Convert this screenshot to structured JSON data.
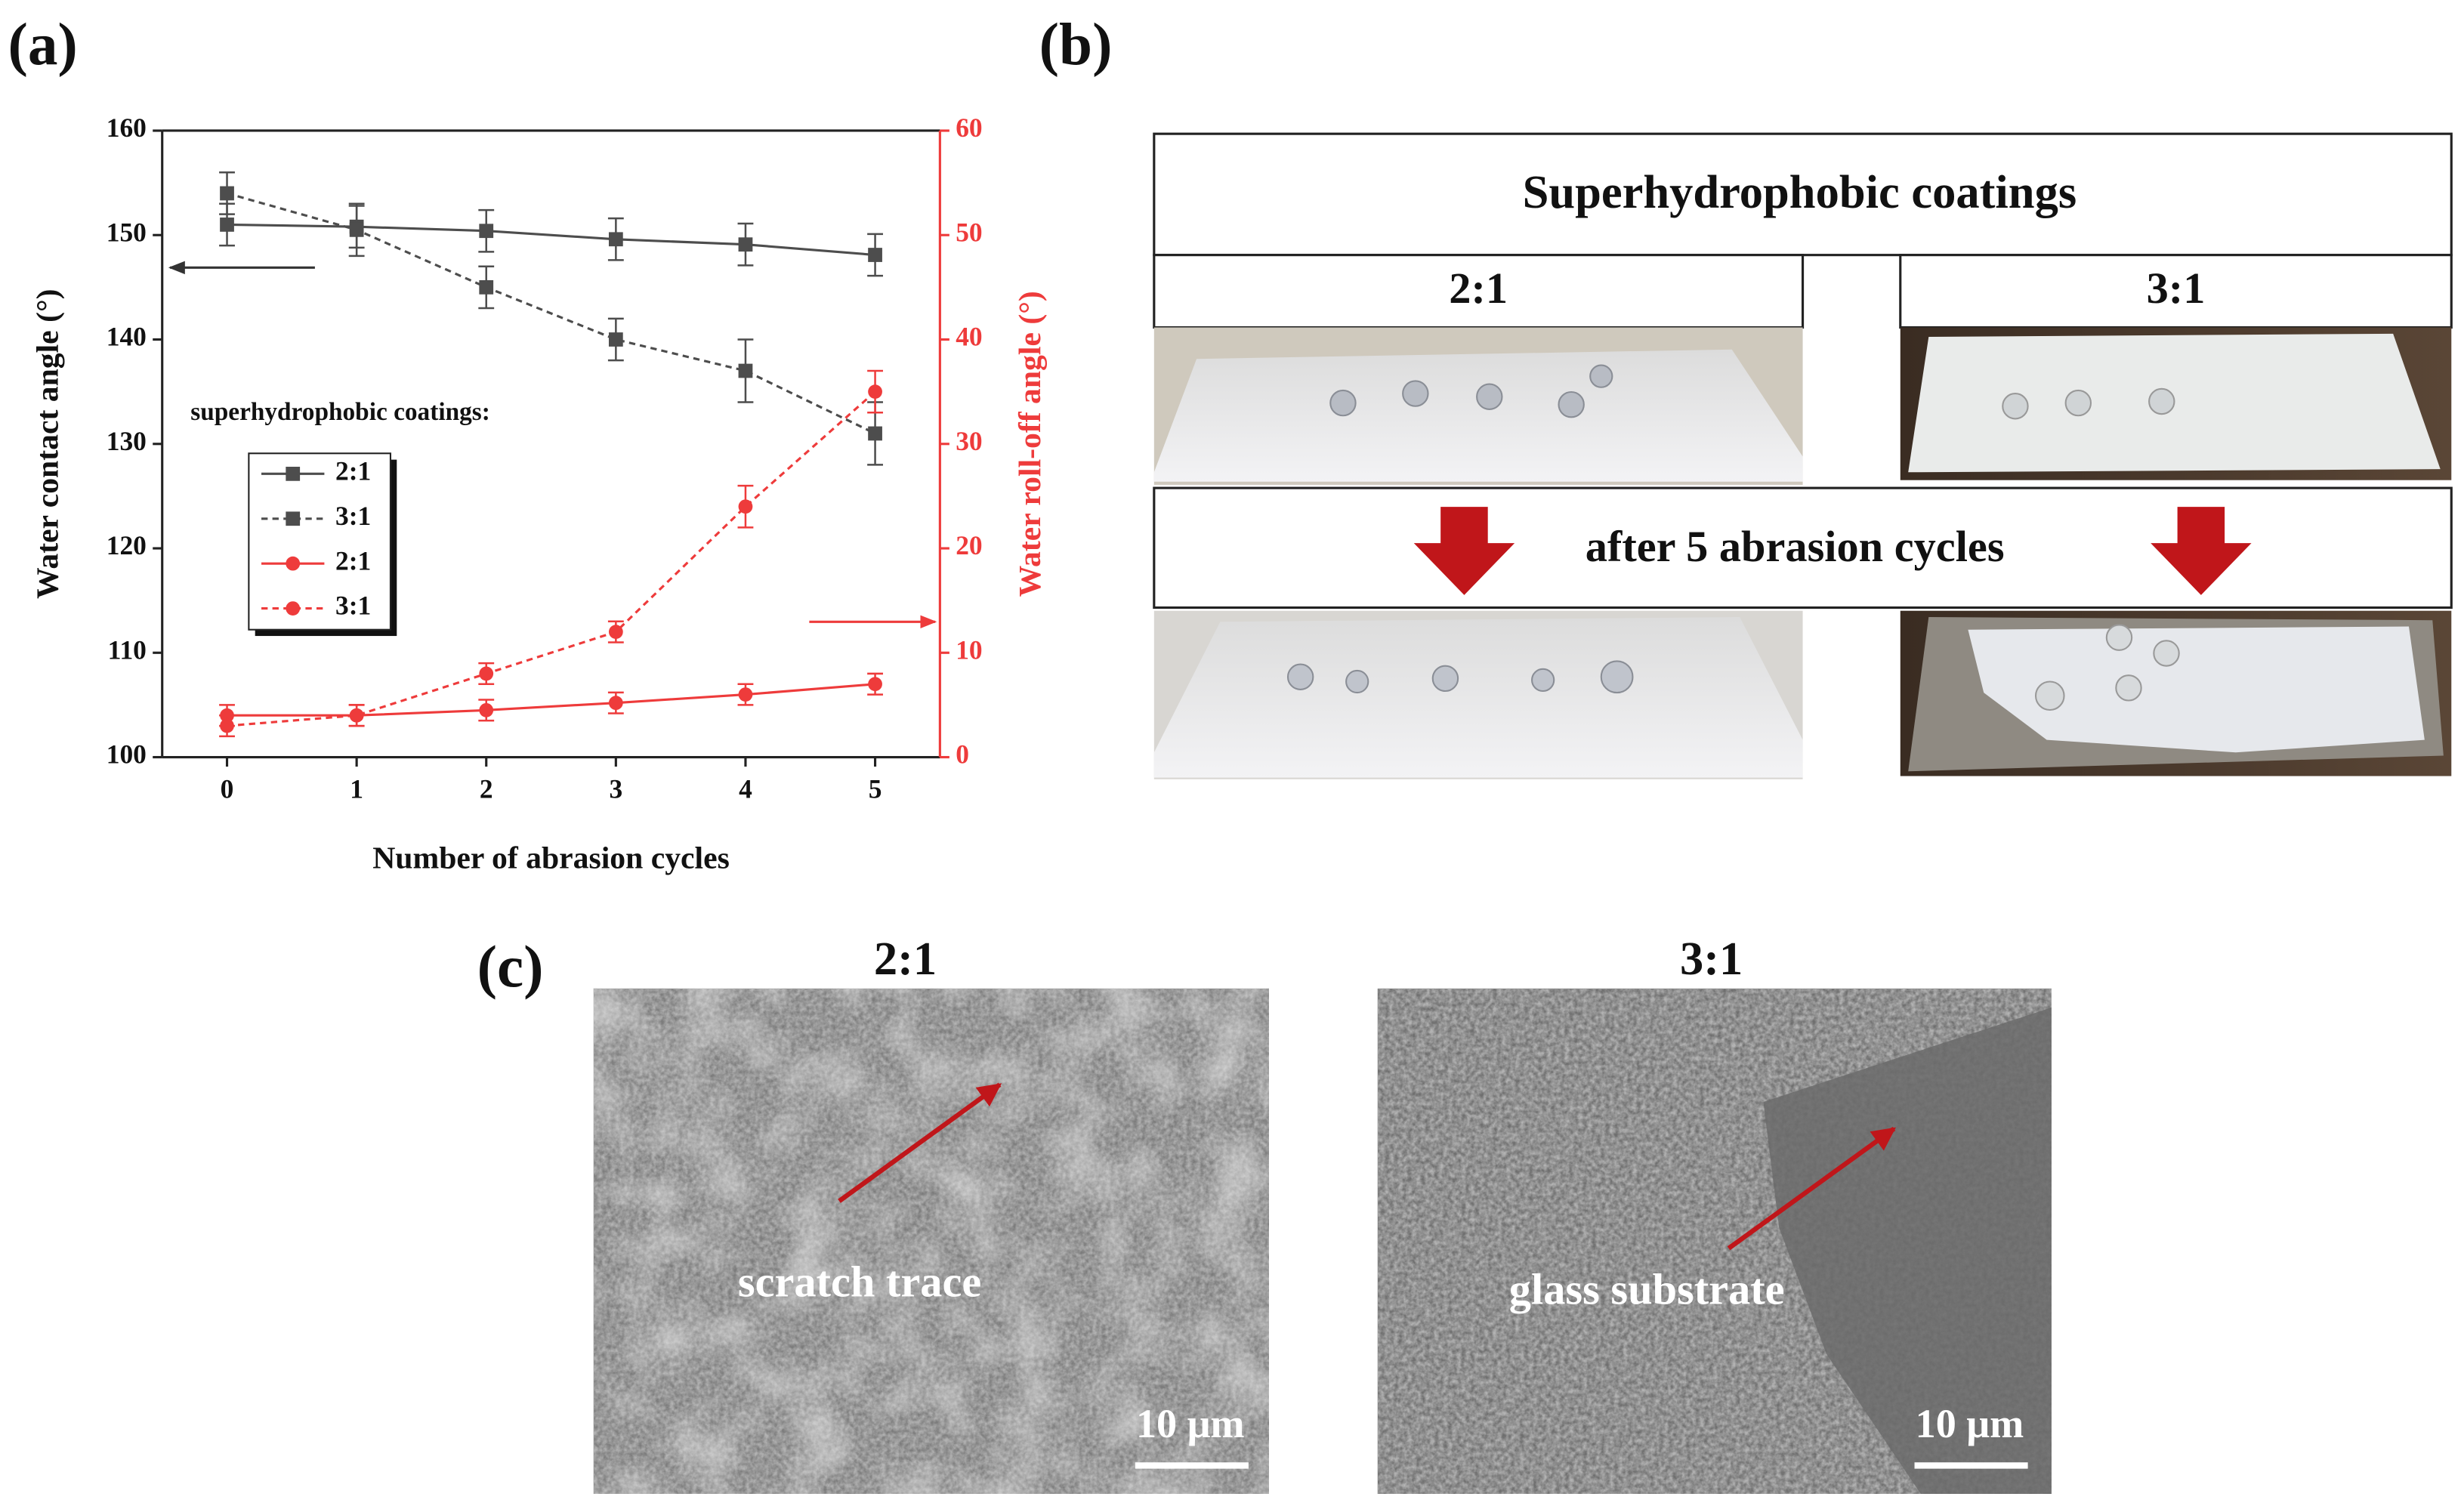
{
  "panel_labels": [
    "(a)",
    "(b)",
    "(c)"
  ],
  "chart_data": {
    "type": "line",
    "x_label": "Number of abrasion cycles",
    "y_label": "Water contact angle (°)",
    "y2_label": "Water roll-off angle (°)",
    "x": [
      0,
      1,
      2,
      3,
      4,
      5
    ],
    "xlim": [
      -0.5,
      5.5
    ],
    "xticks": [
      0,
      1,
      2,
      3,
      4,
      5
    ],
    "ylim": [
      100,
      160
    ],
    "yticks": [
      100,
      110,
      120,
      130,
      140,
      150,
      160
    ],
    "y2lim": [
      0,
      60
    ],
    "y2ticks": [
      0,
      10,
      20,
      30,
      40,
      50,
      60
    ],
    "legend_title": "superhydrophobic coatings:",
    "legend_loc": "center left",
    "series": [
      {
        "name": "2:1",
        "color": "#4d4d4d",
        "linestyle": "solid",
        "marker": "square",
        "values": [
          151,
          150.8,
          150.4,
          149.6,
          149.1,
          148.1
        ],
        "errors": [
          2,
          2,
          2,
          2,
          2,
          2
        ]
      },
      {
        "name": "3:1",
        "color": "#4d4d4d",
        "linestyle": "dashed",
        "marker": "square",
        "values": [
          154,
          150.5,
          145,
          140,
          137,
          131
        ],
        "errors": [
          2,
          2.5,
          2,
          2,
          3,
          3
        ]
      },
      {
        "name": "2:1",
        "color": "#ee3b3b",
        "linestyle": "solid",
        "marker": "circle",
        "axis": "y2",
        "values": [
          4,
          4,
          4.5,
          5.2,
          6,
          7
        ],
        "errors": [
          1,
          1,
          1,
          1,
          1,
          1
        ]
      },
      {
        "name": "3:1",
        "color": "#ee3b3b",
        "linestyle": "dashed",
        "marker": "circle",
        "axis": "y2",
        "values": [
          3,
          4,
          8,
          12,
          24,
          35
        ],
        "errors": [
          1,
          1,
          1,
          1,
          2,
          2
        ]
      }
    ]
  },
  "photos": {
    "header": "Superhydrophobic coatings",
    "left_label": "2:1",
    "right_label": "3:1",
    "middle": "after 5 abrasion cycles"
  },
  "sem": {
    "left_title": "2:1",
    "right_title": "3:1",
    "left_note": "scratch trace",
    "right_note": "glass substrate",
    "left_scale": "10 μm",
    "right_scale": "10 μm"
  }
}
